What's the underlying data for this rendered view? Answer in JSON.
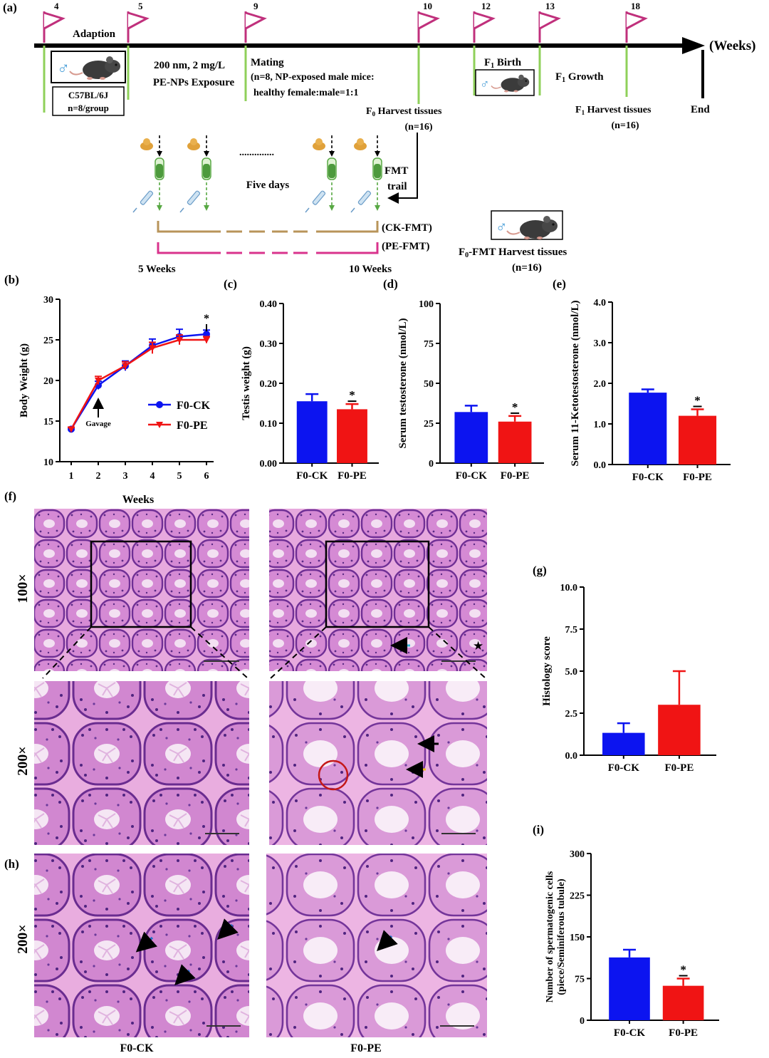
{
  "panel_labels": {
    "a": "(a)",
    "b": "(b)",
    "c": "(c)",
    "d": "(d)",
    "e": "(e)",
    "f": "(f)",
    "g": "(g)",
    "h": "(h)",
    "i": "(i)"
  },
  "colors": {
    "ck": "#0c14f0",
    "pe": "#f01414",
    "flag": "#c0307c",
    "timeline_tick": "#8fd05a",
    "ck_fmt": "#b8945a",
    "pe_fmt": "#d9338c",
    "he_pink": "#e9a6dd",
    "he_purple": "#7a3a9c"
  },
  "timeline": {
    "weeks": [
      "4",
      "5",
      "9",
      "10",
      "12",
      "13",
      "18"
    ],
    "axis_label": "(Weeks)",
    "adaption": "Adaption",
    "strain": "C57BL/6J",
    "group_size": "n=8/group",
    "exposure_line1": "200 nm, 2 mg/L",
    "exposure_line2": "PE-NPs Exposure",
    "mating_title": "Mating",
    "mating_line1": "(n=8, NP-exposed male mice:",
    "mating_line2": "healthy female:male=1:1",
    "f0_harvest": "Harvest tissues",
    "f0_prefix": "F",
    "f0_sub": "0",
    "f0_n": "(n=16)",
    "f1_birth": "Birth",
    "f1_growth": "Growth",
    "f1_prefix": "F",
    "f1_sub": "1",
    "f1_harvest": "Harvest tissues",
    "f1_n": "(n=16)",
    "end": "End",
    "male_symbol": "♂",
    "fmt_dots": "..............",
    "five_days": "Five days",
    "fmt_trail_1": "FMT",
    "fmt_trail_2": "trail",
    "ck_fmt": "(CK-FMT)",
    "pe_fmt": "(PE-FMT)",
    "start_week": "5 Weeks",
    "end_week": "10 Weeks",
    "fmt_harvest_prefix": "F",
    "fmt_harvest_sub": "0",
    "fmt_harvest": "-FMT Harvest tissues",
    "fmt_n": "(n=16)"
  },
  "histology": {
    "mag_100": "100×",
    "mag_200a": "200×",
    "mag_200b": "200×",
    "group_ck": "F0-CK",
    "group_pe": "F0-PE",
    "star": "★"
  },
  "chart_data": [
    {
      "id": "b",
      "type": "line",
      "x": [
        1,
        2,
        3,
        4,
        5,
        6
      ],
      "xlabel": "Weeks",
      "ylabel": "Body Weight (g)",
      "ylim": [
        10,
        30
      ],
      "yticks": [
        10,
        15,
        20,
        25,
        30
      ],
      "series": [
        {
          "name": "F0-CK",
          "color": "#0c14f0",
          "marker": "circle",
          "values": [
            14.0,
            19.4,
            21.8,
            24.3,
            25.4,
            25.7
          ],
          "err": [
            0.2,
            0.5,
            0.6,
            0.8,
            0.9,
            0.5
          ]
        },
        {
          "name": "F0-PE",
          "color": "#f01414",
          "marker": "triangle-down",
          "values": [
            14.0,
            20.0,
            21.8,
            24.0,
            25.0,
            25.0
          ],
          "err": [
            0.2,
            0.5,
            0.5,
            0.7,
            0.6,
            0.4
          ]
        }
      ],
      "annotations": [
        {
          "text": "Gavage",
          "x": 2
        },
        {
          "text": "*",
          "x": 6
        }
      ],
      "legend": "right"
    },
    {
      "id": "c",
      "type": "bar",
      "categories": [
        "F0-CK",
        "F0-PE"
      ],
      "values": [
        0.155,
        0.135
      ],
      "err": [
        0.018,
        0.013
      ],
      "colors": [
        "#0c14f0",
        "#f01414"
      ],
      "ylabel": "Testis weight (g)",
      "ylim": [
        0,
        0.4
      ],
      "yticks": [
        "0.00",
        "0.10",
        "0.20",
        "0.30",
        "0.40"
      ],
      "significance": [
        "",
        "*"
      ]
    },
    {
      "id": "d",
      "type": "bar",
      "categories": [
        "F0-CK",
        "F0-PE"
      ],
      "values": [
        32,
        26
      ],
      "err": [
        4,
        3.5
      ],
      "colors": [
        "#0c14f0",
        "#f01414"
      ],
      "ylabel": "Serum testosterone (nmol/L)",
      "ylim": [
        0,
        100
      ],
      "yticks": [
        "0",
        "25",
        "50",
        "75",
        "100"
      ],
      "significance": [
        "",
        "*"
      ]
    },
    {
      "id": "e",
      "type": "bar",
      "categories": [
        "F0-CK",
        "F0-PE"
      ],
      "values": [
        1.77,
        1.2
      ],
      "err": [
        0.08,
        0.16
      ],
      "colors": [
        "#0c14f0",
        "#f01414"
      ],
      "ylabel": "Serum 11-Ketotestosterone (nmol/L)",
      "ylim": [
        0,
        4
      ],
      "yticks": [
        "0.0",
        "1.0",
        "2.0",
        "3.0",
        "4.0"
      ],
      "significance": [
        "",
        "*"
      ]
    },
    {
      "id": "g",
      "type": "bar",
      "categories": [
        "F0-CK",
        "F0-PE"
      ],
      "values": [
        1.33,
        3.0
      ],
      "err": [
        0.57,
        2.0
      ],
      "colors": [
        "#0c14f0",
        "#f01414"
      ],
      "ylabel": "Histology score",
      "ylim": [
        0,
        10
      ],
      "yticks": [
        "0.0",
        "2.5",
        "5.0",
        "7.5",
        "10.0"
      ],
      "significance": [
        "",
        ""
      ]
    },
    {
      "id": "i",
      "type": "bar",
      "categories": [
        "F0-CK",
        "F0-PE"
      ],
      "values": [
        113,
        62
      ],
      "err": [
        14,
        13
      ],
      "colors": [
        "#0c14f0",
        "#f01414"
      ],
      "ylabel": "Number of spermatogenic cells",
      "ylabel2": "(piece/Seminiferous tubule)",
      "ylim": [
        0,
        300
      ],
      "yticks": [
        "0",
        "75",
        "150",
        "225",
        "300"
      ],
      "significance": [
        "",
        "*"
      ]
    }
  ]
}
